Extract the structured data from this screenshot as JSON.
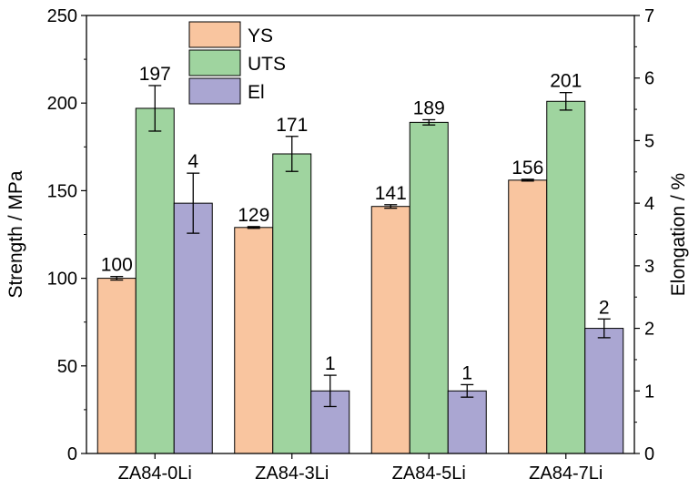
{
  "chart_data": {
    "type": "bar",
    "categories": [
      "ZA84-0Li",
      "ZA84-3Li",
      "ZA84-5Li",
      "ZA84-7Li"
    ],
    "series": [
      {
        "name": "YS",
        "axis": "left",
        "color": "#f9c59f",
        "values": [
          100,
          129,
          141,
          156
        ],
        "errors": [
          1,
          0.5,
          1,
          0.5
        ],
        "labels": [
          "100",
          "129",
          "141",
          "156"
        ]
      },
      {
        "name": "UTS",
        "axis": "left",
        "color": "#9fd49f",
        "values": [
          197,
          171,
          189,
          201
        ],
        "errors": [
          13,
          10,
          1.5,
          5
        ],
        "labels": [
          "197",
          "171",
          "189",
          "201"
        ]
      },
      {
        "name": "El",
        "axis": "right",
        "color": "#aaa6d2",
        "values": [
          4.0,
          1.0,
          1.0,
          2.0
        ],
        "errors": [
          0.48,
          0.25,
          0.1,
          0.15
        ],
        "labels": [
          "4",
          "1",
          "1",
          "2"
        ]
      }
    ],
    "ylabel": "Strength / MPa",
    "y2label": "Elongation / %",
    "ylim": [
      0,
      250
    ],
    "y2lim": [
      0,
      7
    ],
    "yticks": [
      0,
      50,
      100,
      150,
      200,
      250
    ],
    "y2ticks": [
      0,
      1,
      2,
      3,
      4,
      5,
      6,
      7
    ],
    "legend": "top-center",
    "grid": false
  }
}
